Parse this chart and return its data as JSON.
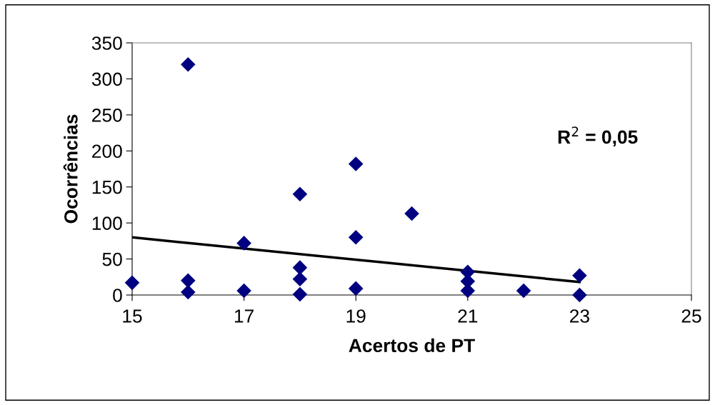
{
  "chart_data": {
    "type": "scatter",
    "xlabel": "Acertos de PT",
    "ylabel": "Ocorrências",
    "series": [
      {
        "color": "#000080",
        "marker": "diamond",
        "x": [
          15,
          16,
          16,
          16,
          17,
          17,
          18,
          18,
          18,
          18,
          19,
          19,
          19,
          20,
          21,
          21,
          21,
          22,
          23,
          23
        ],
        "values": [
          17,
          320,
          20,
          4,
          72,
          6,
          140,
          38,
          22,
          1,
          182,
          80,
          9,
          113,
          32,
          19,
          6,
          6,
          27,
          0
        ]
      },
      {
        "type": "line",
        "color": "#000000",
        "marker": "none",
        "line_style": "solid",
        "x": [
          15,
          23
        ],
        "values": [
          80,
          18
        ]
      }
    ],
    "annotations": [
      "R$^{2}$ = 0,05"
    ],
    "xlim": [
      15,
      25
    ],
    "xticks": [
      15,
      17,
      19,
      21,
      23,
      25
    ],
    "ylim": [
      0,
      350
    ],
    "yticks": [
      0,
      50,
      100,
      150,
      200,
      250,
      300,
      350
    ],
    "grid": false,
    "legend": false
  }
}
